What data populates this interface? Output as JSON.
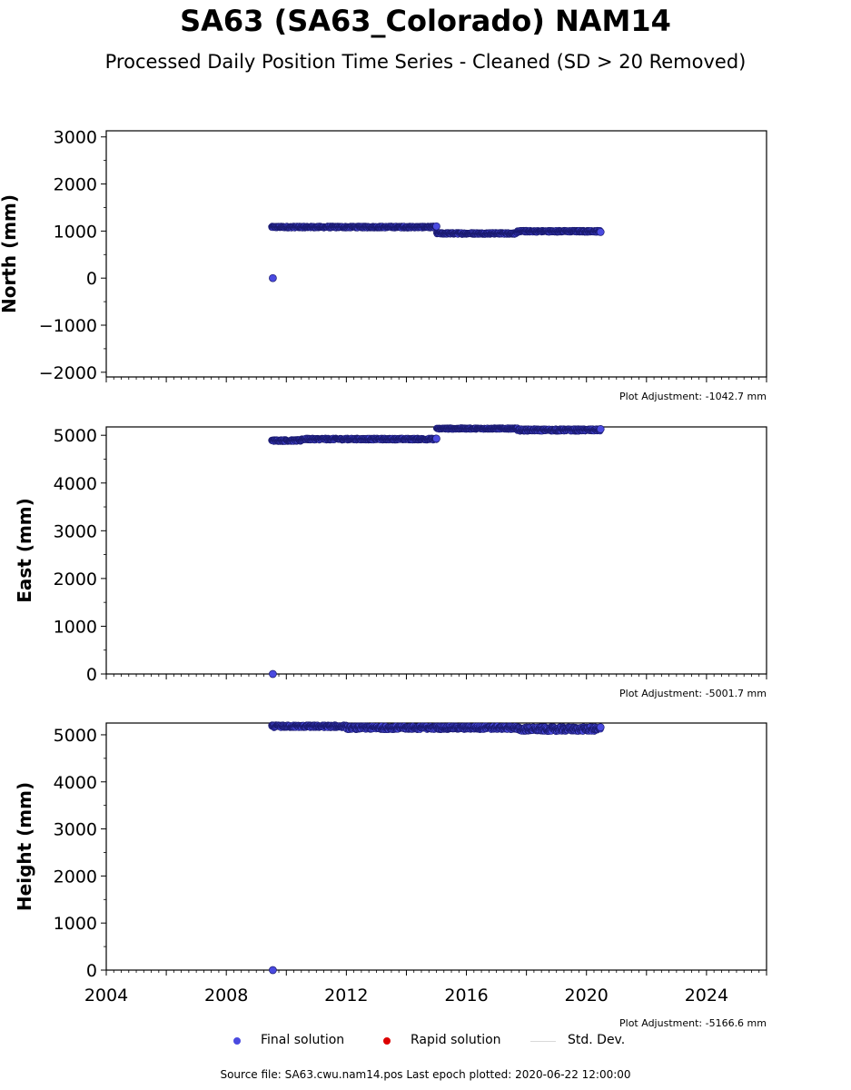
{
  "title": "SA63 (SA63_Colorado) NAM14",
  "subtitle": "Processed Daily Position Time Series - Cleaned (SD > 20 Removed)",
  "source": "Source file: SA63.cwu.nam14.pos  Last epoch plotted: 2020-06-22 12:00:00",
  "legend": {
    "final": "Final solution",
    "rapid": "Rapid solution",
    "std": "Std. Dev."
  },
  "colors": {
    "final": "#4a4ae0",
    "final_edge": "#1a1a6e",
    "rapid": "#dd0000",
    "std": "#d9d9d9"
  },
  "chart_data": [
    {
      "type": "scatter",
      "ylabel": "North (mm)",
      "adjustment": "Plot Adjustment: -1042.7 mm",
      "xlim": [
        2004,
        2026
      ],
      "ylim": [
        -2000,
        3000
      ],
      "yticks": [
        -2000,
        -1000,
        0,
        1000,
        2000,
        3000
      ],
      "segments": [
        {
          "x_start": 2009.5,
          "x_end": 2015.0,
          "y": 1085,
          "spread": 25
        },
        {
          "x_start": 2015.0,
          "x_end": 2017.7,
          "y": 950,
          "spread": 25
        },
        {
          "x_start": 2017.7,
          "x_end": 2020.47,
          "y": 995,
          "spread": 25
        }
      ],
      "points": [
        {
          "x": 2009.55,
          "y": 0
        },
        {
          "x": 2015.0,
          "y": 1100
        },
        {
          "x": 2020.47,
          "y": 980
        }
      ]
    },
    {
      "type": "scatter",
      "ylabel": "East (mm)",
      "adjustment": "Plot Adjustment: -5001.7 mm",
      "xlim": [
        2004,
        2026
      ],
      "ylim": [
        0,
        5000
      ],
      "yticks": [
        0,
        1000,
        2000,
        3000,
        4000,
        5000
      ],
      "segments": [
        {
          "x_start": 2009.5,
          "x_end": 2010.5,
          "y": 4890,
          "spread": 25
        },
        {
          "x_start": 2010.5,
          "x_end": 2015.0,
          "y": 4920,
          "spread": 25
        },
        {
          "x_start": 2015.0,
          "x_end": 2017.7,
          "y": 5140,
          "spread": 20
        },
        {
          "x_start": 2017.7,
          "x_end": 2020.47,
          "y": 5110,
          "spread": 30
        }
      ],
      "points": [
        {
          "x": 2009.55,
          "y": 0
        },
        {
          "x": 2015.0,
          "y": 4930
        },
        {
          "x": 2020.47,
          "y": 5130
        }
      ]
    },
    {
      "type": "scatter",
      "ylabel": "Height (mm)",
      "adjustment": "Plot Adjustment: -5166.6 mm",
      "xlim": [
        2004,
        2026
      ],
      "ylim": [
        0,
        5000
      ],
      "yticks": [
        0,
        1000,
        2000,
        3000,
        4000,
        5000
      ],
      "xticks": [
        2004,
        2008,
        2012,
        2016,
        2020,
        2024
      ],
      "segments": [
        {
          "x_start": 2009.5,
          "x_end": 2012.0,
          "y": 5180,
          "spread": 35
        },
        {
          "x_start": 2012.0,
          "x_end": 2017.7,
          "y": 5150,
          "spread": 45
        },
        {
          "x_start": 2017.7,
          "x_end": 2020.47,
          "y": 5120,
          "spread": 55
        }
      ],
      "points": [
        {
          "x": 2009.55,
          "y": 0
        },
        {
          "x": 2020.47,
          "y": 5160
        }
      ]
    }
  ]
}
